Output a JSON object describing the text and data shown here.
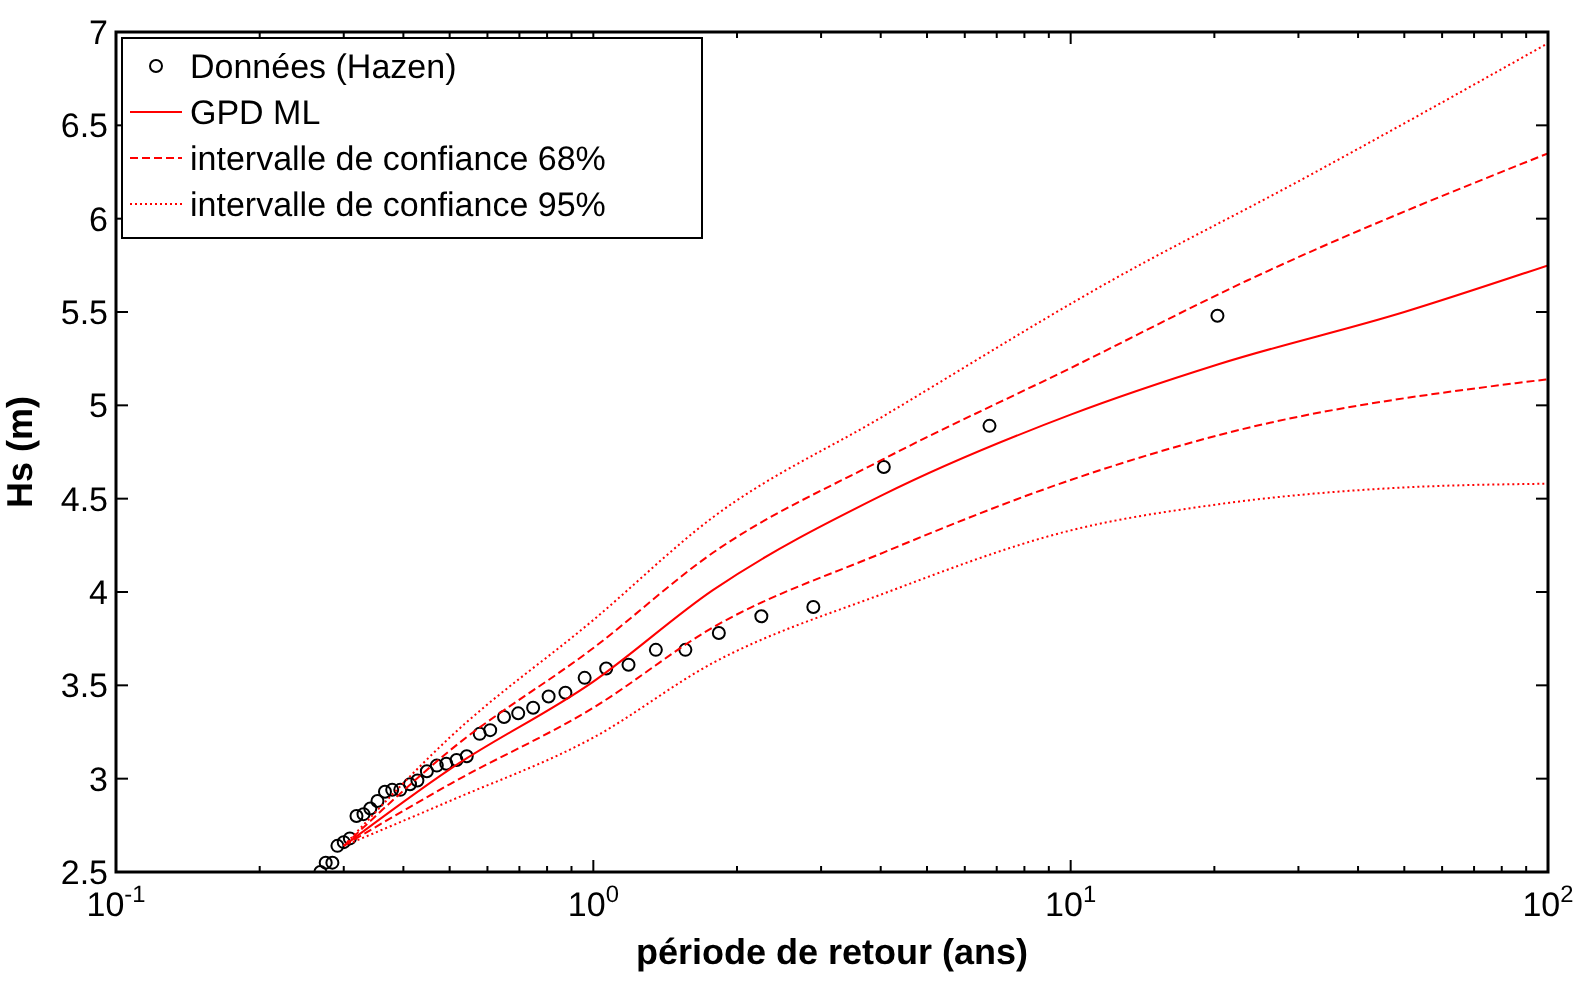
{
  "chart_data": {
    "type": "line",
    "xlabel": "période de retour (ans)",
    "ylabel": "Hs (m)",
    "log": "x",
    "grid": false,
    "legend": "top left",
    "xlim": [
      0.1,
      100
    ],
    "ylim": [
      2.5,
      7
    ],
    "xticks": [
      {
        "value": 0.1,
        "label": "10$^{-1}$"
      },
      {
        "value": 0.2,
        "label": null
      },
      {
        "value": 0.3,
        "label": null
      },
      {
        "value": 0.4,
        "label": null
      },
      {
        "value": 0.5,
        "label": null
      },
      {
        "value": 0.6,
        "label": null
      },
      {
        "value": 0.7,
        "label": null
      },
      {
        "value": 0.8,
        "label": null
      },
      {
        "value": 0.9,
        "label": null
      },
      {
        "value": 1,
        "label": "10$^{0}$"
      },
      {
        "value": 2,
        "label": null
      },
      {
        "value": 3,
        "label": null
      },
      {
        "value": 4,
        "label": null
      },
      {
        "value": 5,
        "label": null
      },
      {
        "value": 6,
        "label": null
      },
      {
        "value": 7,
        "label": null
      },
      {
        "value": 8,
        "label": null
      },
      {
        "value": 9,
        "label": null
      },
      {
        "value": 10,
        "label": "10$^{1}$"
      },
      {
        "value": 20,
        "label": null
      },
      {
        "value": 30,
        "label": null
      },
      {
        "value": 40,
        "label": null
      },
      {
        "value": 50,
        "label": null
      },
      {
        "value": 60,
        "label": null
      },
      {
        "value": 70,
        "label": null
      },
      {
        "value": 80,
        "label": null
      },
      {
        "value": 90,
        "label": null
      },
      {
        "value": 100,
        "label": "10$^{2}$"
      }
    ],
    "yticks": [
      2.5,
      3,
      3.5,
      4,
      4.5,
      5,
      5.5,
      6,
      6.5,
      7
    ],
    "series": [
      {
        "name": "Données (Hazen)",
        "type": "scatter",
        "marker": "circle",
        "color": "#000000",
        "x": [
          0.268,
          0.275,
          0.284,
          0.291,
          0.3,
          0.309,
          0.319,
          0.33,
          0.341,
          0.353,
          0.366,
          0.379,
          0.394,
          0.413,
          0.428,
          0.448,
          0.47,
          0.492,
          0.517,
          0.543,
          0.578,
          0.608,
          0.65,
          0.696,
          0.748,
          0.806,
          0.874,
          0.959,
          1.064,
          1.185,
          1.352,
          1.559,
          1.832,
          2.249,
          2.89,
          4.06,
          6.76,
          20.3
        ],
        "values": [
          2.5,
          2.55,
          2.55,
          2.64,
          2.66,
          2.68,
          2.8,
          2.81,
          2.84,
          2.88,
          2.93,
          2.94,
          2.94,
          2.97,
          2.99,
          3.04,
          3.07,
          3.08,
          3.1,
          3.12,
          3.24,
          3.26,
          3.33,
          3.35,
          3.38,
          3.44,
          3.46,
          3.54,
          3.59,
          3.61,
          3.69,
          3.69,
          3.78,
          3.87,
          3.92,
          4.67,
          4.89,
          5.48
        ]
      },
      {
        "name": "GPD ML",
        "line_style": "solid",
        "color": "#ff0000",
        "x": [
          0.3,
          0.5,
          1,
          1.78,
          4.04,
          10,
          20.4,
          50,
          100
        ],
        "values": [
          2.64,
          3.05,
          3.52,
          4.01,
          4.52,
          4.95,
          5.22,
          5.5,
          5.75
        ]
      },
      {
        "name": "intervalle de confiance 68%",
        "line_style": "dashed",
        "color": "#ff0000",
        "x": [
          0.3,
          0.5,
          1,
          1.78,
          4.04,
          10,
          23.5,
          100
        ],
        "values": [
          2.64,
          3.15,
          3.7,
          4.21,
          4.71,
          5.2,
          5.67,
          6.35
        ]
      },
      {
        "name": null,
        "line_style": "dashed",
        "color": "#ff0000",
        "x": [
          0.3,
          0.5,
          1,
          1.78,
          4.04,
          10,
          20.4,
          100
        ],
        "values": [
          2.64,
          2.97,
          3.38,
          3.81,
          4.21,
          4.6,
          4.84,
          5.14
        ]
      },
      {
        "name": "intervalle de confiance 95%",
        "line_style": "dotted",
        "color": "#ff0000",
        "x": [
          0.3,
          0.5,
          1,
          1.78,
          4.04,
          12.2,
          30,
          100
        ],
        "values": [
          2.64,
          3.22,
          3.85,
          4.4,
          4.94,
          5.67,
          6.2,
          6.94
        ]
      },
      {
        "name": null,
        "line_style": "dotted",
        "color": "#ff0000",
        "x": [
          0.3,
          0.5,
          1,
          1.78,
          4.04,
          10,
          20.4,
          50,
          100
        ],
        "values": [
          2.64,
          2.88,
          3.22,
          3.62,
          3.99,
          4.33,
          4.47,
          4.56,
          4.58
        ]
      }
    ]
  }
}
